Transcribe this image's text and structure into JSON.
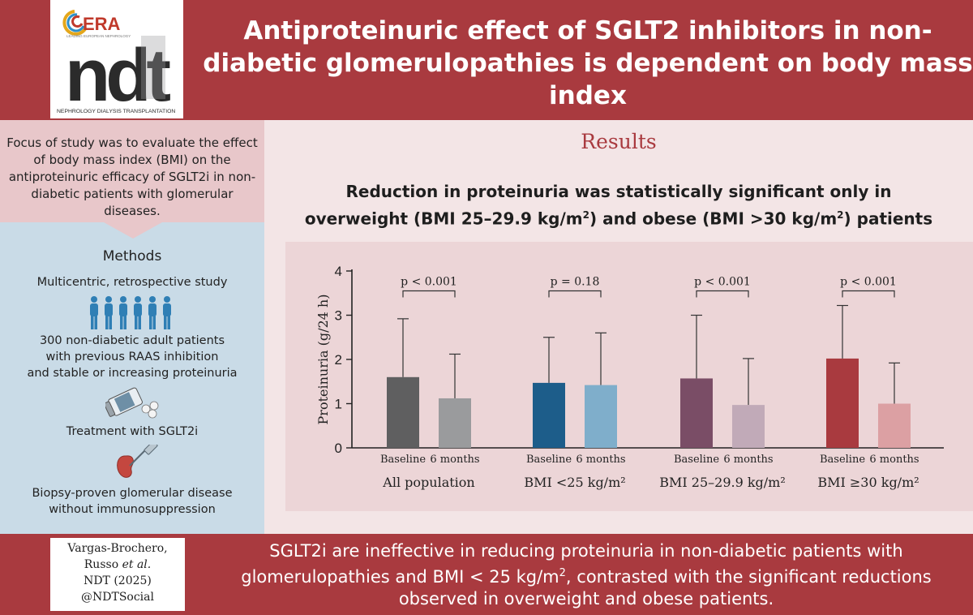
{
  "header": {
    "title": "Antiproteinuric effect of SGLT2 inhibitors in non-diabetic glomerulopathies is dependent on body mass index",
    "logo_era": "ERA",
    "logo_era_sub": "LEADING EUROPEAN NEPHROLOGY",
    "logo_ndt": "ndt",
    "logo_ndt_sub": "NEPHROLOGY DIALYSIS TRANSPLANTATION"
  },
  "left": {
    "focus_text": "Focus of study was to evaluate the effect of body mass index (BMI) on the antiproteinuric efficacy of SGLT2i in non-diabetic patients with glomerular diseases.",
    "methods_title": "Methods",
    "design": "Multicentric, retrospective study",
    "patients_line1": "300 non-diabetic adult patients",
    "patients_line2": "with previous RAAS inhibition",
    "patients_line3": "and stable or increasing proteinuria",
    "treatment": "Treatment with SGLT2i",
    "biopsy_line1": "Biopsy-proven glomerular disease",
    "biopsy_line2": "without immunosuppression",
    "icons": [
      "people-icon",
      "pill-bottle-icon",
      "kidney-biopsy-icon"
    ]
  },
  "results": {
    "title": "Results",
    "subtitle_line1": "Reduction in proteinuria was statistically significant only in",
    "subtitle_line2_a": "overweight (BMI 25–29.9 kg/m",
    "subtitle_line2_b": "2",
    "subtitle_line2_c": ") and obese (BMI >30 kg/m",
    "subtitle_line2_d": "2",
    "subtitle_line2_e": ") patients"
  },
  "chart_data": {
    "type": "bar",
    "ylabel": "Proteinuria (g/24 h)",
    "ylim": [
      0,
      4
    ],
    "yticks": [
      "0",
      "1",
      "2",
      "3",
      "4"
    ],
    "bar_labels": [
      "Baseline",
      "6 months"
    ],
    "groups": [
      {
        "label": "All population",
        "p": "p < 0.001",
        "values": [
          1.6,
          1.12
        ],
        "errors": [
          2.92,
          2.12
        ],
        "colors": [
          "#5f5f60",
          "#9a9b9d"
        ]
      },
      {
        "label": "BMI <25 kg/m²",
        "p": "p = 0.18",
        "values": [
          1.47,
          1.42
        ],
        "errors": [
          2.5,
          2.6
        ],
        "colors": [
          "#1d5d8a",
          "#7faecb"
        ]
      },
      {
        "label": "BMI 25–29.9 kg/m²",
        "p": "p < 0.001",
        "values": [
          1.57,
          0.97
        ],
        "errors": [
          3.0,
          2.02
        ],
        "colors": [
          "#7a4d66",
          "#c1aab8"
        ]
      },
      {
        "label": "BMI ≥30 kg/m²",
        "p": "p < 0.001",
        "values": [
          2.02,
          1.0
        ],
        "errors": [
          3.22,
          1.92
        ],
        "colors": [
          "#a93a3f",
          "#dca0a3"
        ]
      }
    ]
  },
  "footer": {
    "author_line1": "Vargas-Brochero,",
    "author_line2a": "Russo ",
    "author_line2b": "et al.",
    "journal": "NDT (2025)",
    "social": "@NDTSocial",
    "conclusion_a": "SGLT2i are ineffective in reducing proteinuria in non-diabetic patients with glomerulopathies and BMI < 25 kg/m",
    "conclusion_sup": "2",
    "conclusion_b": ", contrasted with the significant reductions observed in overweight and obese patients."
  }
}
